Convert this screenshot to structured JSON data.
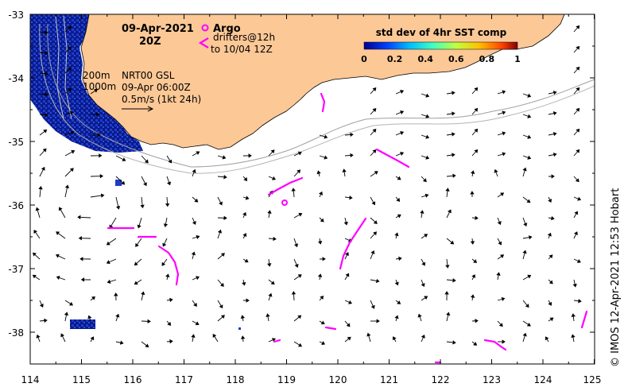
{
  "map": {
    "title_date": "09-Apr-2021",
    "title_time": "20Z",
    "lon_ticks": [
      "114",
      "115",
      "116",
      "117",
      "118",
      "119",
      "120",
      "121",
      "122",
      "123",
      "124",
      "125"
    ],
    "lat_ticks": [
      "-33",
      "-34",
      "-35",
      "-36",
      "-37",
      "-38"
    ],
    "isobath_labels": [
      "200m",
      "1000m"
    ],
    "current_label_line1": "NRT00 GSL",
    "current_label_line2": "09-Apr 06:00Z",
    "current_label_line3": "0.5m/s (1kt 24h)",
    "argo_label": "Argo",
    "drifter_label_line1": "drifters@12h",
    "drifter_label_line2": "to 10/04 12Z",
    "colorbar_title": "std dev of 4hr SST comp",
    "colorbar_ticks": [
      "0",
      "0.2",
      "0.4",
      "0.6",
      "0.8",
      "1"
    ],
    "credit": "© IMOS 12-Apr-2021 12:53 Hobart",
    "colors": {
      "land": "#fcc896",
      "sst_high": "#0a1a8c",
      "sst_mid": "#1e3cc8",
      "drifter": "#ff00ff",
      "arrow": "#000000",
      "isobath": "#a0a0a0"
    }
  }
}
